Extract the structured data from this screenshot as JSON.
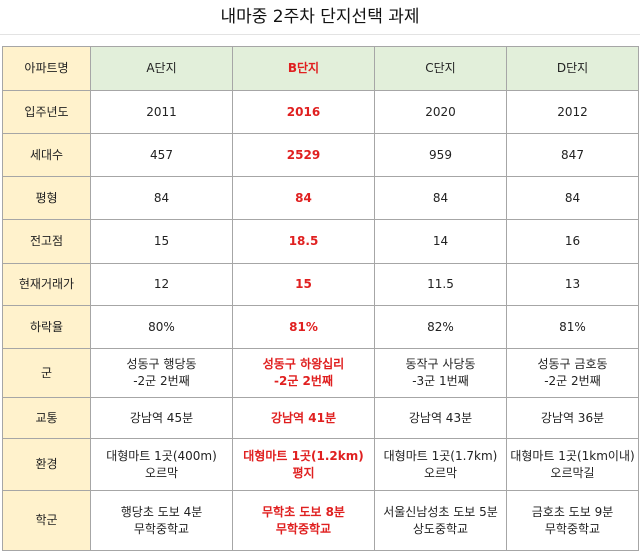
{
  "title": "내마중 2주차 단지선택 과제",
  "header_label": "아파트명",
  "columns": [
    "A단지",
    "B단지",
    "C단지",
    "D단지"
  ],
  "highlight_color": "#e02020",
  "rows": [
    {
      "label": "입주년도",
      "cells": [
        [
          "2011"
        ],
        [
          "2016"
        ],
        [
          "2020"
        ],
        [
          "2012"
        ]
      ]
    },
    {
      "label": "세대수",
      "cells": [
        [
          "457"
        ],
        [
          "2529"
        ],
        [
          "959"
        ],
        [
          "847"
        ]
      ]
    },
    {
      "label": "평형",
      "cells": [
        [
          "84"
        ],
        [
          "84"
        ],
        [
          "84"
        ],
        [
          "84"
        ]
      ]
    },
    {
      "label": "전고점",
      "cells": [
        [
          "15"
        ],
        [
          "18.5"
        ],
        [
          "14"
        ],
        [
          "16"
        ]
      ]
    },
    {
      "label": "현재거래가",
      "cells": [
        [
          "12"
        ],
        [
          "15"
        ],
        [
          "11.5"
        ],
        [
          "13"
        ]
      ]
    },
    {
      "label": "하락율",
      "cells": [
        [
          "80%"
        ],
        [
          "81%"
        ],
        [
          "82%"
        ],
        [
          "81%"
        ]
      ]
    },
    {
      "label": "군",
      "cells": [
        [
          "성동구 행당동",
          "-2군 2번째"
        ],
        [
          "성동구 하왕십리",
          "-2군 2번째"
        ],
        [
          "동작구 사당동",
          "-3군 1번째"
        ],
        [
          "성동구 금호동",
          "-2군 2번째"
        ]
      ]
    },
    {
      "label": "교통",
      "cells": [
        [
          "강남역 45분"
        ],
        [
          "강남역 41분"
        ],
        [
          "강남역 43분"
        ],
        [
          "강남역 36분"
        ]
      ]
    },
    {
      "label": "환경",
      "cells": [
        [
          "대형마트 1곳(400m)",
          "오르막"
        ],
        [
          "대형마트 1곳(1.2km)",
          "평지"
        ],
        [
          "대형마트 1곳(1.7km)",
          "오르막"
        ],
        [
          "대형마트 1곳(1km이내)",
          "오르막길"
        ]
      ]
    },
    {
      "label": "학군",
      "cells": [
        [
          "행당초 도보 4분",
          "무학중학교"
        ],
        [
          "무학초 도보 8분",
          "무학중학교"
        ],
        [
          "서울신남성초 도보 5분",
          "상도중학교"
        ],
        [
          "금호초 도보 9분",
          "무학중학교"
        ]
      ]
    }
  ]
}
